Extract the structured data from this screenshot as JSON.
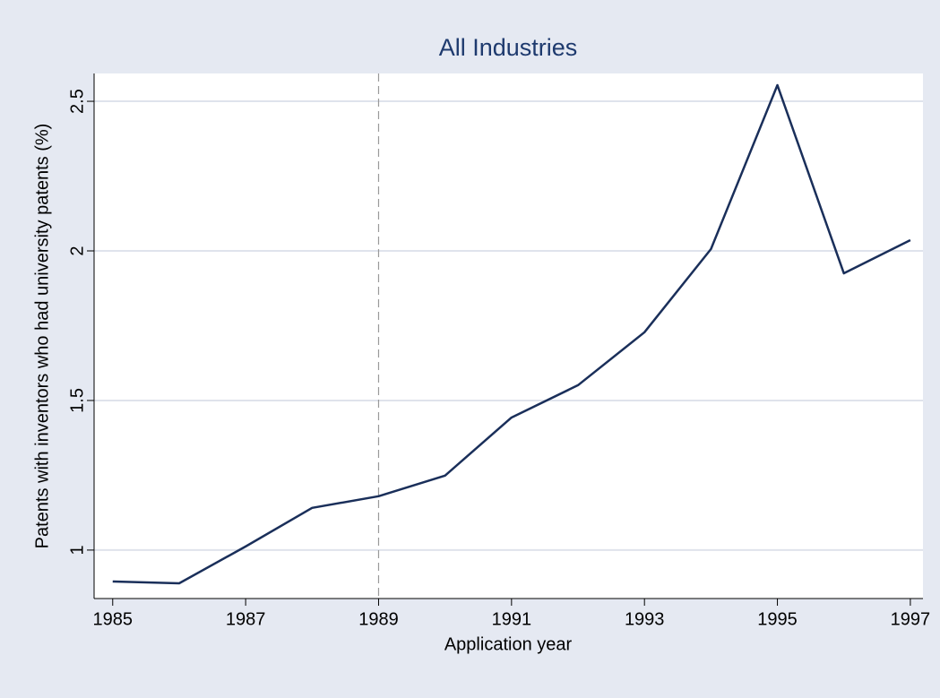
{
  "chart_data": {
    "type": "line",
    "title": "All Industries",
    "x_label": "Application year",
    "y_label": "Patents with inventors who had university patents (%)",
    "x": [
      1985,
      1986,
      1987,
      1988,
      1989,
      1990,
      1991,
      1992,
      1993,
      1994,
      1995,
      1996,
      1997
    ],
    "series": [
      {
        "name": "All Industries",
        "color": "#1a2f5a",
        "values": [
          0.895,
          0.889,
          1.012,
          1.141,
          1.18,
          1.249,
          1.443,
          1.551,
          1.728,
          2.006,
          2.554,
          1.925,
          2.036
        ]
      }
    ],
    "xlim": [
      1984.72,
      1997.19
    ],
    "xticks": [
      1985,
      1987,
      1989,
      1991,
      1993,
      1995,
      1997
    ],
    "ylim": [
      0.838,
      2.593
    ],
    "yticks": [
      1,
      1.5,
      2,
      2.5
    ],
    "vline": 1989,
    "grid": true
  }
}
